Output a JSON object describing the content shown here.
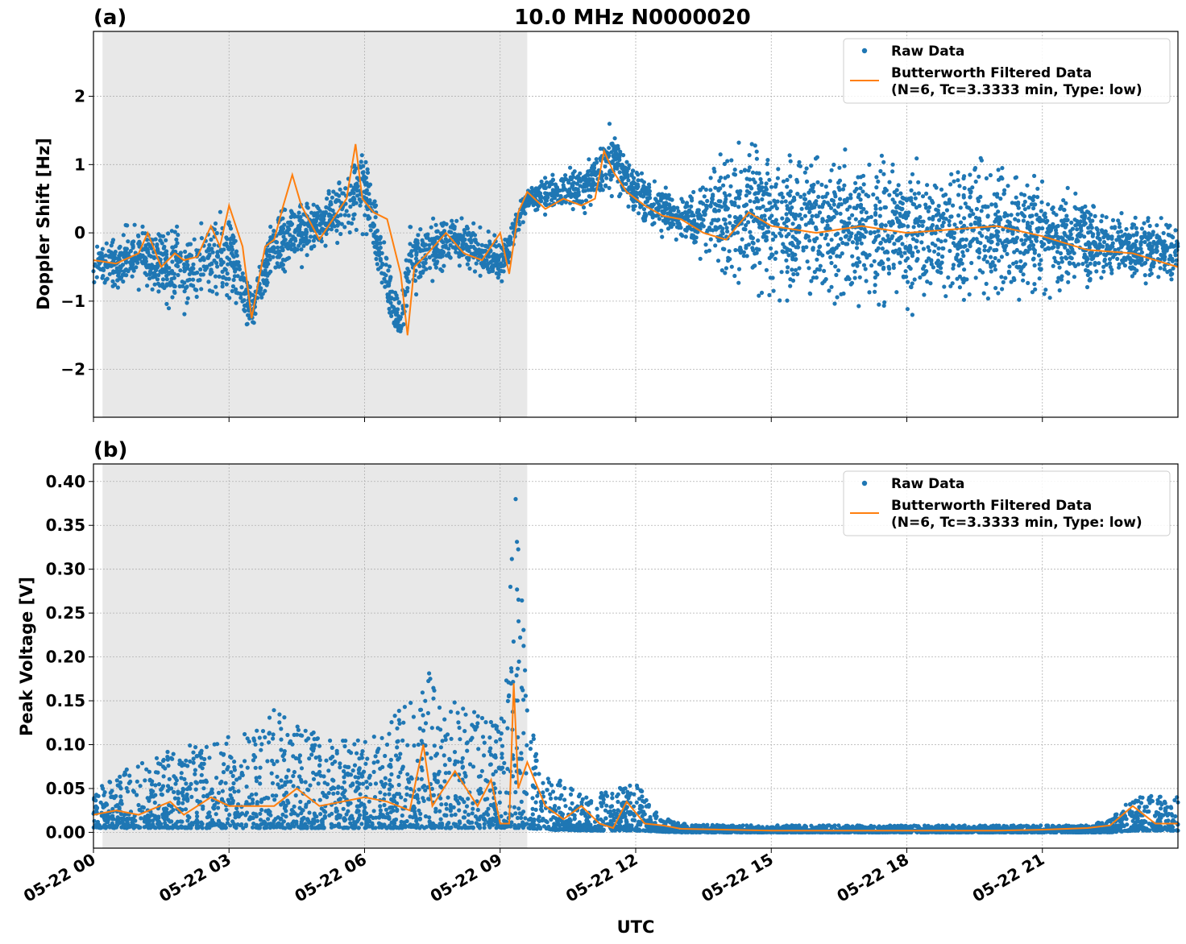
{
  "figure": {
    "title": "10.0 MHz N0000020",
    "xlabel": "UTC",
    "x_ticks": [
      "05-22 00",
      "05-22 03",
      "05-22 06",
      "05-22 09",
      "05-22 12",
      "05-22 15",
      "05-22 18",
      "05-22 21"
    ],
    "legend": {
      "raw": "Raw Data",
      "filtered_line1": "Butterworth Filtered Data",
      "filtered_line2": "(N=6, Tc=3.3333 min, Type: low)"
    },
    "colors": {
      "raw": "#1f77b4",
      "filtered": "#ff7f0e",
      "shade": "#e8e8e8",
      "grid": "#b0b0b0"
    }
  },
  "chart_data": [
    {
      "type": "scatter",
      "panel_label": "(a)",
      "ylabel": "Doppler Shift [Hz]",
      "xlim_hours": [
        0,
        24
      ],
      "ylim": [
        -2.7,
        2.95
      ],
      "y_ticks": [
        -2,
        -1,
        0,
        1,
        2
      ],
      "y_tick_labels": [
        "−2",
        "−1",
        "0",
        "1",
        "2"
      ],
      "grid": true,
      "legend_position": "upper right",
      "shaded_interval_hours": [
        0.2,
        9.6
      ],
      "series": [
        {
          "name": "Butterworth Filtered Data",
          "style": "line",
          "hours": [
            0,
            0.5,
            1,
            1.2,
            1.5,
            1.8,
            2.0,
            2.3,
            2.6,
            2.8,
            3.0,
            3.3,
            3.5,
            3.8,
            4.0,
            4.2,
            4.4,
            4.6,
            5.0,
            5.3,
            5.6,
            5.8,
            5.95,
            6.2,
            6.5,
            6.8,
            6.95,
            7.1,
            7.4,
            7.8,
            8.2,
            8.6,
            9.0,
            9.2,
            9.4,
            9.6,
            10.0,
            10.4,
            10.8,
            11.1,
            11.3,
            11.5,
            11.8,
            12.2,
            12.6,
            13.0,
            13.5,
            14.0,
            14.5,
            15,
            16,
            17,
            18,
            19,
            20,
            21,
            22,
            23,
            24
          ],
          "values": [
            -0.4,
            -0.45,
            -0.3,
            0.0,
            -0.5,
            -0.3,
            -0.4,
            -0.35,
            0.1,
            -0.2,
            0.4,
            -0.2,
            -1.25,
            -0.2,
            -0.1,
            0.4,
            0.85,
            0.4,
            -0.1,
            0.2,
            0.5,
            1.3,
            0.5,
            0.3,
            0.2,
            -0.6,
            -1.5,
            -0.5,
            -0.3,
            0.0,
            -0.3,
            -0.4,
            0.0,
            -0.6,
            0.3,
            0.6,
            0.35,
            0.5,
            0.4,
            0.5,
            1.2,
            0.9,
            0.6,
            0.4,
            0.25,
            0.2,
            0.0,
            -0.1,
            0.3,
            0.1,
            0.0,
            0.1,
            0.0,
            0.05,
            0.1,
            -0.05,
            -0.25,
            -0.3,
            -0.5
          ]
        },
        {
          "name": "Raw Data",
          "style": "markers",
          "envelope_hours": [
            0,
            1,
            2,
            3,
            3.5,
            4,
            5,
            6,
            6.8,
            7,
            8,
            9,
            9.6,
            10,
            11,
            11.5,
            12,
            13,
            14,
            15,
            16,
            17,
            18,
            19,
            20,
            21,
            22,
            23,
            24
          ],
          "envelope_low": [
            -0.9,
            -1.0,
            -1.3,
            -1.1,
            -1.5,
            -0.8,
            -0.4,
            -0.1,
            -2.0,
            -1.0,
            -0.6,
            -0.9,
            0.3,
            0.2,
            0.2,
            0.5,
            0.1,
            -0.2,
            -0.9,
            -1.2,
            -1.3,
            -1.4,
            -1.4,
            -1.4,
            -1.3,
            -1.2,
            -1.0,
            -0.8,
            -0.8
          ],
          "envelope_high": [
            0.0,
            0.3,
            0.2,
            0.6,
            -0.8,
            0.5,
            0.6,
            1.45,
            -1.0,
            0.3,
            0.4,
            0.0,
            0.7,
            0.9,
            1.2,
            1.8,
            1.0,
            0.6,
            1.4,
            1.6,
            1.5,
            1.5,
            1.4,
            1.3,
            1.3,
            1.1,
            0.7,
            0.3,
            0.3
          ]
        }
      ]
    },
    {
      "type": "scatter",
      "panel_label": "(b)",
      "ylabel": "Peak Voltage [V]",
      "xlim_hours": [
        0,
        24
      ],
      "ylim": [
        -0.018,
        0.42
      ],
      "y_ticks": [
        0.0,
        0.05,
        0.1,
        0.15,
        0.2,
        0.25,
        0.3,
        0.35,
        0.4
      ],
      "y_tick_labels": [
        "0.00",
        "0.05",
        "0.10",
        "0.15",
        "0.20",
        "0.25",
        "0.30",
        "0.35",
        "0.40"
      ],
      "grid": true,
      "legend_position": "upper right",
      "shaded_interval_hours": [
        0.2,
        9.6
      ],
      "series": [
        {
          "name": "Butterworth Filtered Data",
          "style": "line",
          "hours": [
            0,
            0.5,
            1.0,
            1.7,
            2.0,
            2.6,
            3.0,
            3.5,
            4.0,
            4.5,
            5.0,
            5.5,
            6.0,
            6.5,
            7.0,
            7.3,
            7.5,
            8.0,
            8.5,
            8.8,
            9.0,
            9.2,
            9.3,
            9.4,
            9.6,
            10.0,
            10.4,
            10.8,
            11.2,
            11.5,
            11.8,
            12.2,
            12.6,
            13.0,
            14,
            15,
            16,
            17,
            18,
            19,
            20,
            21,
            22,
            22.5,
            23,
            23.5,
            24
          ],
          "values": [
            0.02,
            0.025,
            0.02,
            0.035,
            0.02,
            0.04,
            0.03,
            0.03,
            0.03,
            0.05,
            0.03,
            0.035,
            0.04,
            0.035,
            0.025,
            0.1,
            0.03,
            0.07,
            0.03,
            0.06,
            0.01,
            0.01,
            0.17,
            0.05,
            0.08,
            0.03,
            0.015,
            0.03,
            0.01,
            0.005,
            0.035,
            0.01,
            0.008,
            0.004,
            0.003,
            0.002,
            0.002,
            0.002,
            0.002,
            0.002,
            0.002,
            0.003,
            0.005,
            0.008,
            0.03,
            0.01,
            0.01
          ]
        },
        {
          "name": "Raw Data",
          "style": "markers",
          "envelope_hours": [
            0,
            1,
            2,
            3,
            4,
            5,
            6,
            7,
            7.3,
            8,
            9,
            9.35,
            9.6,
            10,
            11,
            12,
            12.5,
            13,
            14,
            22,
            22.5,
            23,
            24
          ],
          "envelope_low": [
            0.005,
            0.005,
            0.005,
            0.005,
            0.005,
            0.005,
            0.005,
            0.005,
            0.005,
            0.005,
            0.005,
            0.005,
            0.005,
            0.003,
            0.002,
            0.002,
            0.001,
            0.0,
            0.0,
            0.0,
            0.0,
            0.002,
            0.002
          ],
          "envelope_high": [
            0.05,
            0.08,
            0.1,
            0.11,
            0.14,
            0.11,
            0.11,
            0.15,
            0.19,
            0.15,
            0.12,
            0.4,
            0.15,
            0.07,
            0.04,
            0.06,
            0.02,
            0.01,
            0.008,
            0.008,
            0.015,
            0.045,
            0.04
          ]
        }
      ]
    }
  ]
}
